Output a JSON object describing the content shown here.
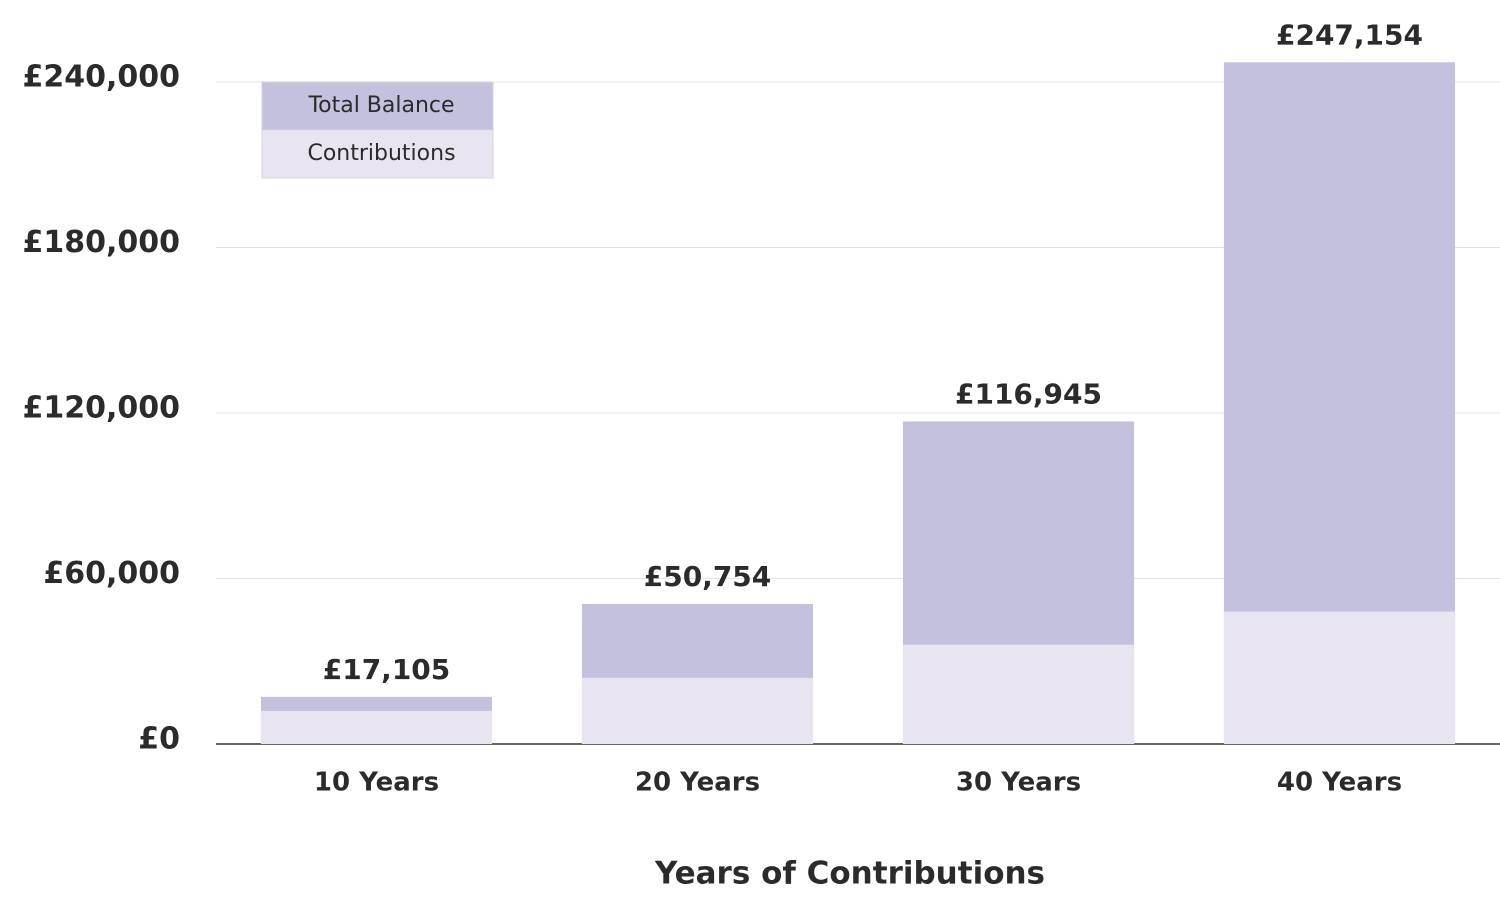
{
  "chart_data": {
    "type": "bar",
    "x_label": "Years of Contributions",
    "categories": [
      "10 Years",
      "20 Years",
      "30 Years",
      "40 Years"
    ],
    "series": [
      {
        "name": "Total Balance",
        "color": "#c4c1de",
        "values": [
          17105,
          50754,
          116945,
          247154
        ],
        "value_labels": [
          "£17,105",
          "£50,754",
          "£116,945",
          "£247,154"
        ]
      },
      {
        "name": "Contributions",
        "color": "#e9e5f0",
        "values": [
          12000,
          24000,
          36000,
          48000
        ]
      }
    ],
    "ylim": [
      0,
      260000
    ],
    "yticks": [
      {
        "value": 0,
        "label": "£0"
      },
      {
        "value": 60000,
        "label": "£60,000"
      },
      {
        "value": 120000,
        "label": "£120,000"
      },
      {
        "value": 180000,
        "label": "£180,000"
      },
      {
        "value": 240000,
        "label": "£240,000"
      }
    ],
    "grid": true,
    "legend": "upper left"
  }
}
